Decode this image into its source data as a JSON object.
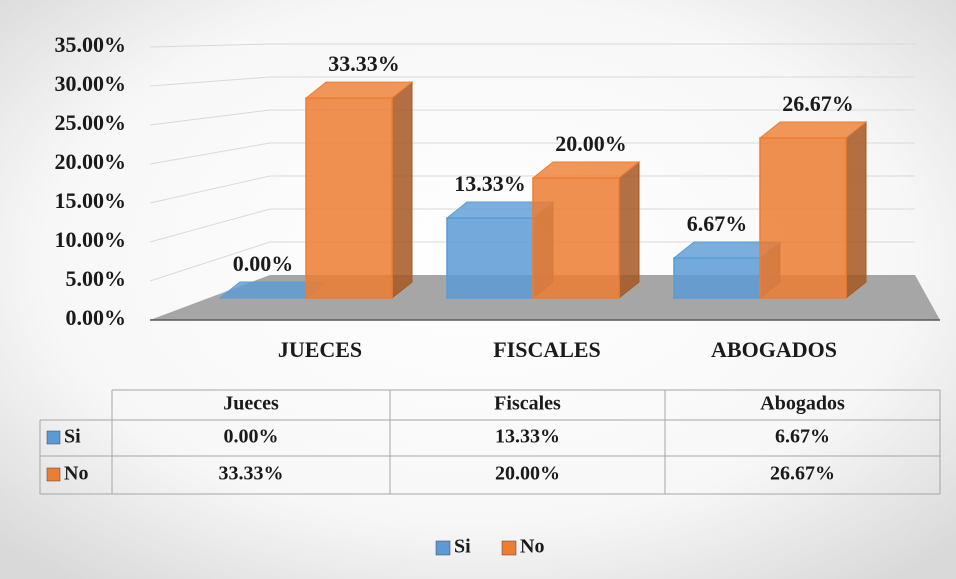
{
  "chart_data": {
    "type": "bar3d",
    "categories": [
      "JUECES",
      "FISCALES",
      "ABOGADOS"
    ],
    "series": [
      {
        "name": "Si",
        "color": "#5b9bd5",
        "values": [
          0,
          13.33,
          6.67
        ],
        "value_labels": [
          "0.00%",
          "13.33%",
          "6.67%"
        ]
      },
      {
        "name": "No",
        "color": "#ed7d31",
        "values": [
          33.33,
          20,
          26.67
        ],
        "value_labels": [
          "33.33%",
          "20.00%",
          "26.67%"
        ]
      }
    ],
    "ylim": [
      0,
      35
    ],
    "yticks": [
      {
        "value": 0,
        "label": "0.00%"
      },
      {
        "value": 5,
        "label": "5.00%"
      },
      {
        "value": 10,
        "label": "10.00%"
      },
      {
        "value": 15,
        "label": "15.00%"
      },
      {
        "value": 20,
        "label": "20.00%"
      },
      {
        "value": 25,
        "label": "25.00%"
      },
      {
        "value": 30,
        "label": "30.00%"
      },
      {
        "value": 35,
        "label": "35.00%"
      }
    ],
    "grid": true,
    "legend": "bottom",
    "data_table": {
      "columns": [
        "Jueces",
        "Fiscales",
        "Abogados"
      ]
    }
  }
}
